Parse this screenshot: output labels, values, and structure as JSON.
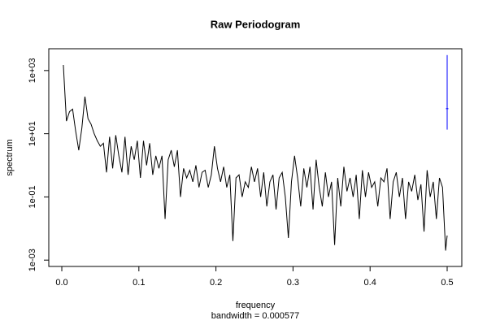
{
  "chart_data": {
    "type": "line",
    "title": "Raw Periodogram",
    "x_label": "frequency",
    "y_label": "spectrum",
    "subtitle": "bandwidth = 0.000577",
    "log_y": true,
    "xlim": [
      -0.0169,
      0.519
    ],
    "ylim": [
      0.00063,
      4900
    ],
    "xticks": [
      {
        "value": 0,
        "label": "0.0"
      },
      0.1,
      0.2,
      0.3,
      0.4,
      0.5
    ],
    "yticks": [
      {
        "value": 1000,
        "label": "1e+03"
      },
      {
        "value": 10,
        "label": "1e+01"
      },
      {
        "value": 0.1,
        "label": "1e-01"
      },
      {
        "value": 0.001,
        "label": "1e-03"
      }
    ],
    "x": [
      0.002,
      0.006,
      0.01,
      0.014,
      0.018,
      0.022,
      0.026,
      0.03,
      0.034,
      0.038,
      0.042,
      0.046,
      0.05,
      0.054,
      0.058,
      0.062,
      0.066,
      0.07,
      0.074,
      0.078,
      0.082,
      0.086,
      0.09,
      0.094,
      0.098,
      0.102,
      0.106,
      0.11,
      0.114,
      0.118,
      0.122,
      0.126,
      0.13,
      0.134,
      0.138,
      0.142,
      0.146,
      0.15,
      0.154,
      0.158,
      0.162,
      0.166,
      0.17,
      0.174,
      0.178,
      0.182,
      0.186,
      0.19,
      0.194,
      0.198,
      0.202,
      0.206,
      0.21,
      0.214,
      0.218,
      0.222,
      0.226,
      0.23,
      0.234,
      0.238,
      0.242,
      0.246,
      0.25,
      0.254,
      0.258,
      0.262,
      0.266,
      0.27,
      0.274,
      0.278,
      0.282,
      0.286,
      0.29,
      0.294,
      0.298,
      0.302,
      0.306,
      0.31,
      0.314,
      0.318,
      0.322,
      0.326,
      0.33,
      0.334,
      0.338,
      0.342,
      0.346,
      0.35,
      0.354,
      0.358,
      0.362,
      0.366,
      0.37,
      0.374,
      0.378,
      0.382,
      0.386,
      0.39,
      0.394,
      0.398,
      0.402,
      0.406,
      0.41,
      0.414,
      0.418,
      0.422,
      0.426,
      0.43,
      0.434,
      0.438,
      0.442,
      0.446,
      0.45,
      0.454,
      0.458,
      0.462,
      0.466,
      0.47,
      0.474,
      0.478,
      0.482,
      0.486,
      0.49,
      0.494,
      0.498,
      0.5
    ],
    "series": [
      {
        "name": "spectrum",
        "color": "#000000",
        "values": [
          1500,
          25,
          50,
          60,
          12,
          3,
          15,
          150,
          30,
          20,
          10,
          6,
          4,
          5,
          0.6,
          8,
          0.8,
          9,
          2,
          0.6,
          8,
          0.5,
          4,
          1.5,
          6,
          0.4,
          6,
          1,
          5,
          0.5,
          2,
          0.8,
          2,
          0.02,
          1.5,
          3,
          0.9,
          3,
          0.1,
          0.8,
          0.4,
          0.7,
          0.3,
          1,
          0.2,
          0.6,
          0.7,
          0.2,
          0.5,
          4,
          0.8,
          0.3,
          0.9,
          0.2,
          0.5,
          0.004,
          0.4,
          0.5,
          0.1,
          0.3,
          0.2,
          0.9,
          0.3,
          0.8,
          0.1,
          0.6,
          0.05,
          0.3,
          0.5,
          0.04,
          0.4,
          0.6,
          0.1,
          0.005,
          0.3,
          2,
          0.4,
          0.05,
          0.8,
          0.2,
          0.9,
          0.04,
          1.5,
          0.2,
          0.05,
          0.6,
          0.1,
          0.3,
          0.003,
          0.4,
          0.05,
          0.9,
          0.15,
          0.4,
          0.1,
          0.5,
          0.02,
          0.7,
          0.1,
          0.6,
          0.2,
          0.3,
          0.05,
          0.4,
          0.3,
          0.8,
          0.02,
          0.3,
          0.6,
          0.1,
          0.4,
          0.02,
          0.3,
          0.15,
          0.5,
          0.08,
          0.25,
          0.008,
          0.7,
          0.1,
          0.3,
          0.02,
          0.4,
          0.2,
          0.002,
          0.006
        ]
      }
    ],
    "ci_bar": {
      "x": 0.5,
      "lower": 13.5,
      "center": 62,
      "upper": 3090,
      "color": "#0000ff"
    }
  }
}
